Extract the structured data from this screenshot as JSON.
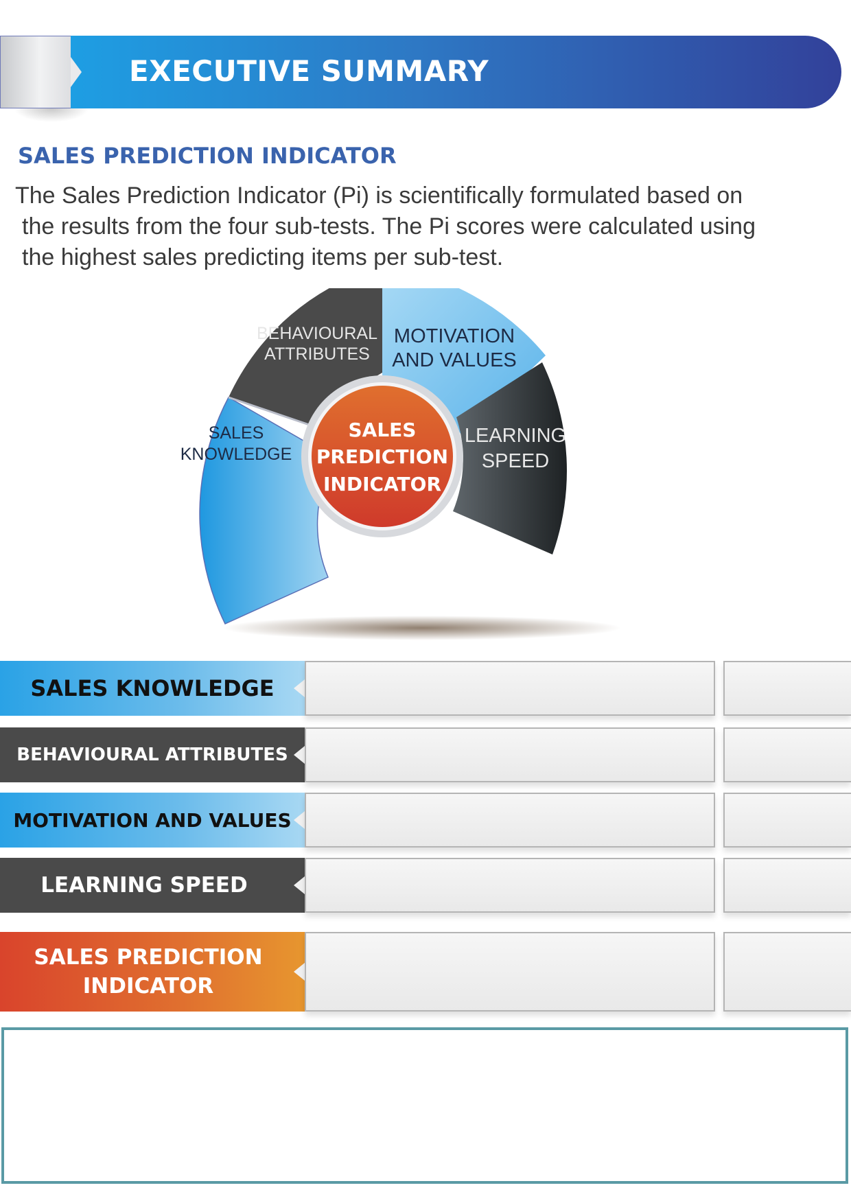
{
  "header": {
    "title": "EXECUTIVE SUMMARY"
  },
  "section": {
    "heading": "SALES PREDICTION INDICATOR",
    "intro_lines": [
      "The Sales Prediction Indicator (Pi) is scientifically formulated based on",
      "the results from the four sub-tests. The Pi scores were calculated using",
      "the highest sales predicting items per sub-test."
    ]
  },
  "diagram": {
    "center": [
      "SALES",
      "PREDICTION",
      "INDICATOR"
    ],
    "segments": [
      {
        "id": "sales-knowledge",
        "lines": [
          "SALES",
          "KNOWLEDGE"
        ]
      },
      {
        "id": "behavioural-attributes",
        "lines": [
          "BEHAVIOURAL",
          "ATTRIBUTES"
        ]
      },
      {
        "id": "motivation-and-values",
        "lines": [
          "MOTIVATION",
          "AND VALUES"
        ]
      },
      {
        "id": "learning-speed",
        "lines": [
          "LEARNING",
          "SPEED"
        ]
      }
    ]
  },
  "rows": [
    {
      "label": "SALES  KNOWLEDGE"
    },
    {
      "label": "BEHAVIOURAL  ATTRIBUTES"
    },
    {
      "label": "MOTIVATION AND VALUES"
    },
    {
      "label": "LEARNING  SPEED"
    },
    {
      "label_lines": [
        "SALES  PREDICTION",
        "INDICATOR"
      ]
    }
  ],
  "colors": {
    "banner_start": "#1e9ee3",
    "banner_end": "#32419a",
    "heading": "#3a63ad",
    "blue_segment": "#2aa2e6",
    "dark_segment": "#4a4a4a",
    "center": "#d9472b",
    "comment_border": "#5a9aa5"
  }
}
